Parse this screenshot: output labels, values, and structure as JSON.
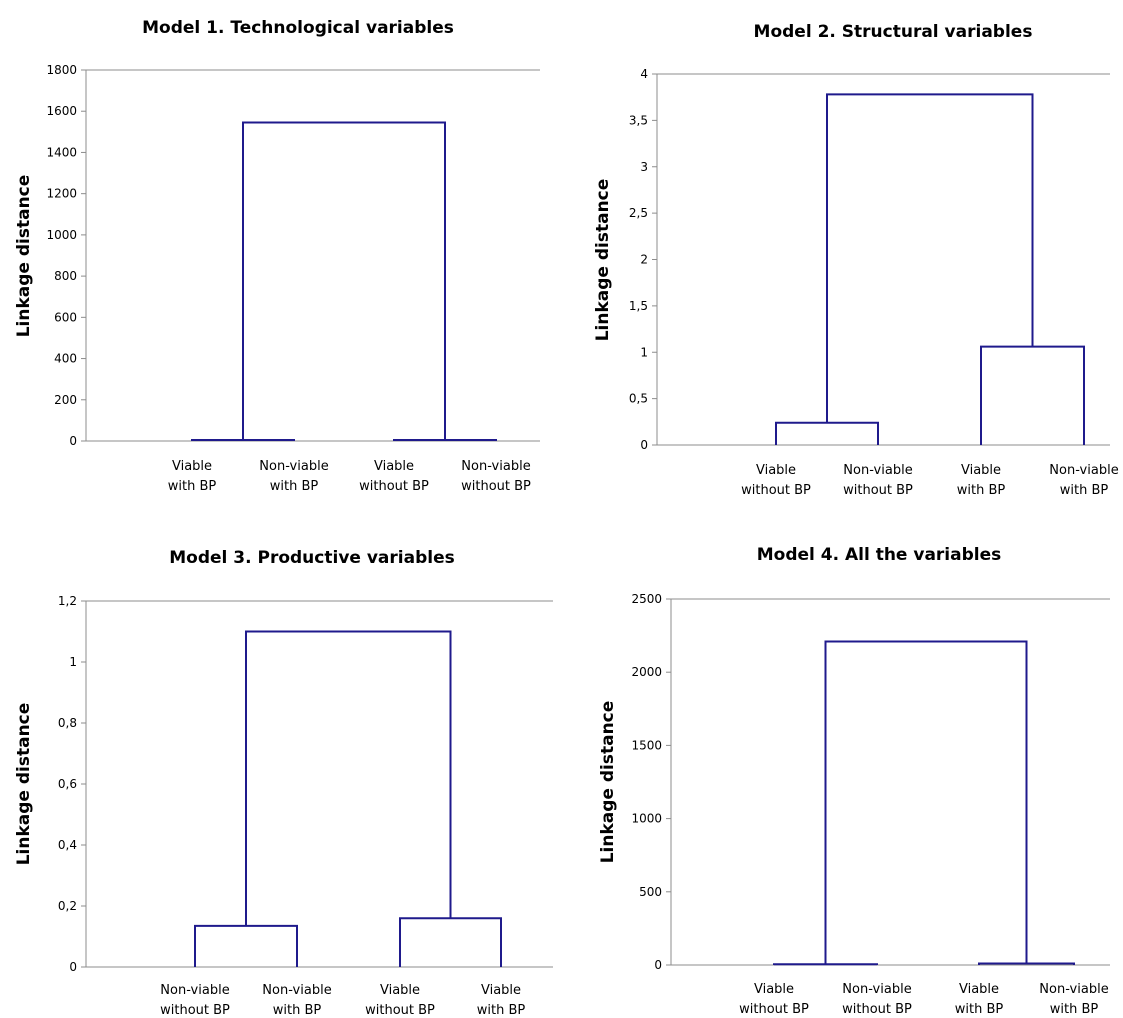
{
  "chart_data": [
    {
      "type": "dendrogram",
      "title": "Model 1. Technological variables",
      "ylabel": "Linkage distance",
      "ylim": [
        0,
        1800
      ],
      "yticks": [
        "0",
        "200",
        "400",
        "600",
        "800",
        "1000",
        "1200",
        "1400",
        "1600",
        "1800"
      ],
      "leaves": [
        [
          "Viable",
          "with BP"
        ],
        [
          "Non-viable",
          "with BP"
        ],
        [
          "Viable",
          "without BP"
        ],
        [
          "Non-viable",
          "without BP"
        ]
      ],
      "merges": [
        {
          "a": 0,
          "b": 1,
          "height": 5
        },
        {
          "a": 2,
          "b": 3,
          "height": 5
        },
        {
          "a": 4,
          "b": 5,
          "height": 1545
        }
      ]
    },
    {
      "type": "dendrogram",
      "title": "Model 2. Structural variables",
      "ylabel": "Linkage distance",
      "ylim": [
        0,
        4
      ],
      "yticks": [
        "0",
        "0,5",
        "1",
        "1,5",
        "2",
        "2,5",
        "3",
        "3,5",
        "4"
      ],
      "leaves": [
        [
          "Viable",
          "without BP"
        ],
        [
          "Non-viable",
          "without BP"
        ],
        [
          "Viable",
          "with BP"
        ],
        [
          "Non-viable",
          "with BP"
        ]
      ],
      "merges": [
        {
          "a": 0,
          "b": 1,
          "height": 0.24
        },
        {
          "a": 2,
          "b": 3,
          "height": 1.06
        },
        {
          "a": 4,
          "b": 5,
          "height": 3.78
        }
      ]
    },
    {
      "type": "dendrogram",
      "title": "Model 3. Productive variables",
      "ylabel": "Linkage distance",
      "ylim": [
        0,
        1.2
      ],
      "yticks": [
        "0",
        "0,2",
        "0,4",
        "0,6",
        "0,8",
        "1",
        "1,2"
      ],
      "leaves": [
        [
          "Non-viable",
          "without BP"
        ],
        [
          "Non-viable",
          "with BP"
        ],
        [
          "Viable",
          "without BP"
        ],
        [
          "Viable",
          "with BP"
        ]
      ],
      "merges": [
        {
          "a": 0,
          "b": 1,
          "height": 0.135
        },
        {
          "a": 2,
          "b": 3,
          "height": 0.16
        },
        {
          "a": 4,
          "b": 5,
          "height": 1.1
        }
      ]
    },
    {
      "type": "dendrogram",
      "title": "Model 4. All the variables",
      "ylabel": "Linkage distance",
      "ylim": [
        0,
        2500
      ],
      "yticks": [
        "0",
        "500",
        "1000",
        "1500",
        "2000",
        "2500"
      ],
      "leaves": [
        [
          "Viable",
          "without BP"
        ],
        [
          "Non-viable",
          "without BP"
        ],
        [
          "Viable",
          "with BP"
        ],
        [
          "Non-viable",
          "with BP"
        ]
      ],
      "merges": [
        {
          "a": 0,
          "b": 1,
          "height": 5
        },
        {
          "a": 2,
          "b": 3,
          "height": 10
        },
        {
          "a": 4,
          "b": 5,
          "height": 2210
        }
      ]
    }
  ],
  "colors": {
    "line": "#1f1a8c",
    "axis": "#8c8c8c",
    "background": "#ffffff"
  }
}
